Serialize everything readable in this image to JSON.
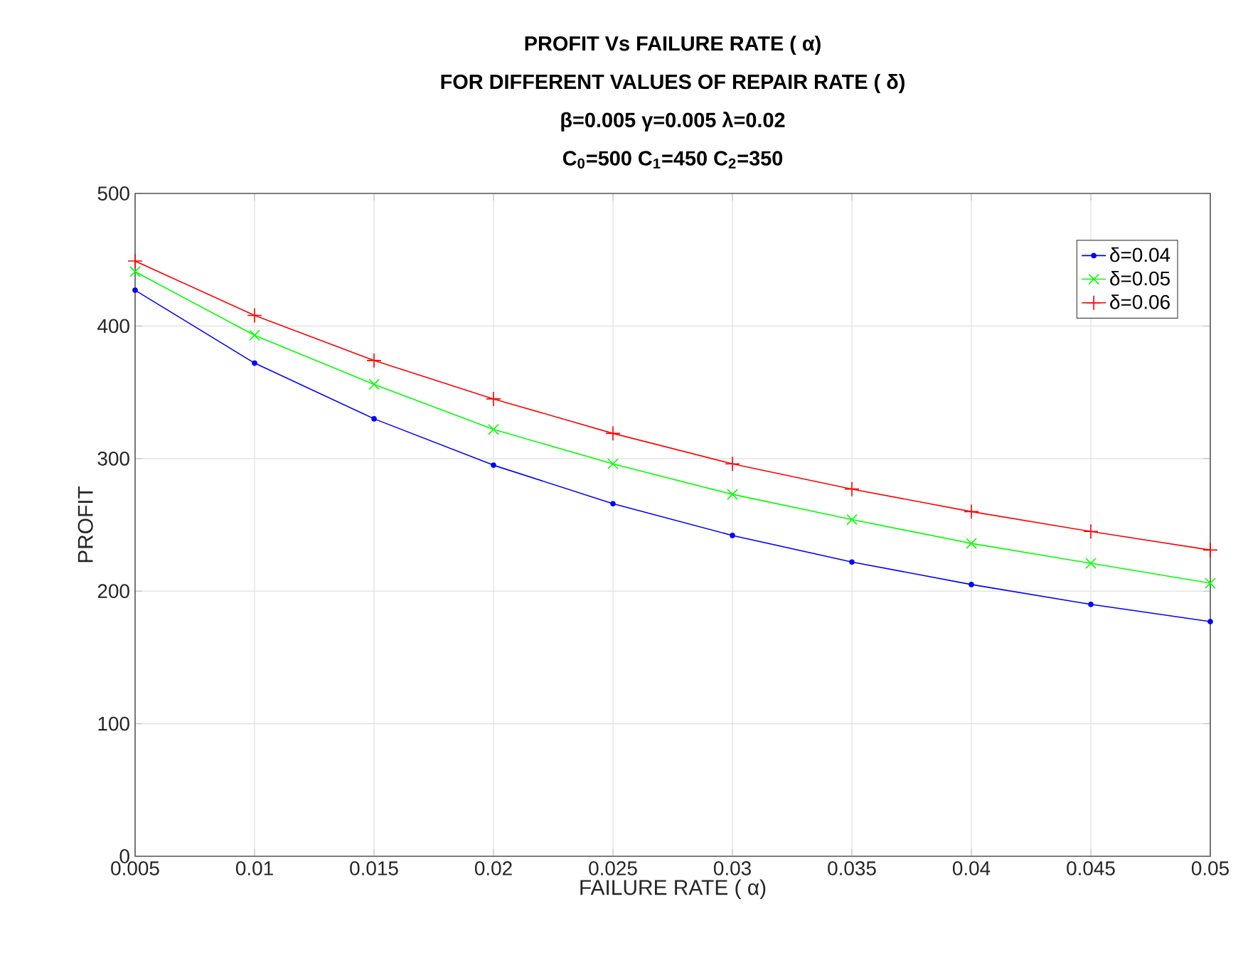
{
  "chart_data": {
    "type": "line",
    "title": [
      "PROFIT Vs FAILURE RATE ( α)",
      "FOR DIFFERENT VALUES OF REPAIR RATE ( δ)",
      "β=0.005 γ=0.005 λ=0.02",
      "C$_{0}$=500 C$_{1}$=450 C$_{2}$=350"
    ],
    "xlabel": "FAILURE RATE ( α)",
    "ylabel": "PROFIT",
    "x": [
      0.005,
      0.01,
      0.015,
      0.02,
      0.025,
      0.03,
      0.035,
      0.04,
      0.045,
      0.05
    ],
    "series": [
      {
        "name": "δ=0.04",
        "color": "#0000ff",
        "marker": "circle",
        "values": [
          427,
          372,
          330,
          295,
          266,
          242,
          222,
          205,
          190,
          177
        ]
      },
      {
        "name": "δ=0.05",
        "color": "#00ff00",
        "marker": "x",
        "values": [
          441,
          393,
          356,
          322,
          296,
          273,
          254,
          236,
          221,
          206
        ]
      },
      {
        "name": "δ=0.06",
        "color": "#ff0000",
        "marker": "plus",
        "values": [
          449,
          408,
          374,
          345,
          319,
          296,
          277,
          260,
          245,
          231
        ]
      }
    ],
    "xlim": [
      0.005,
      0.05
    ],
    "ylim": [
      0,
      500
    ],
    "xticks": [
      0.005,
      0.01,
      0.015,
      0.02,
      0.025,
      0.03,
      0.035,
      0.04,
      0.045,
      0.05
    ],
    "yticks": [
      0,
      100,
      200,
      300,
      400,
      500
    ],
    "grid": true,
    "legend": "top right",
    "line_style": "solid"
  }
}
